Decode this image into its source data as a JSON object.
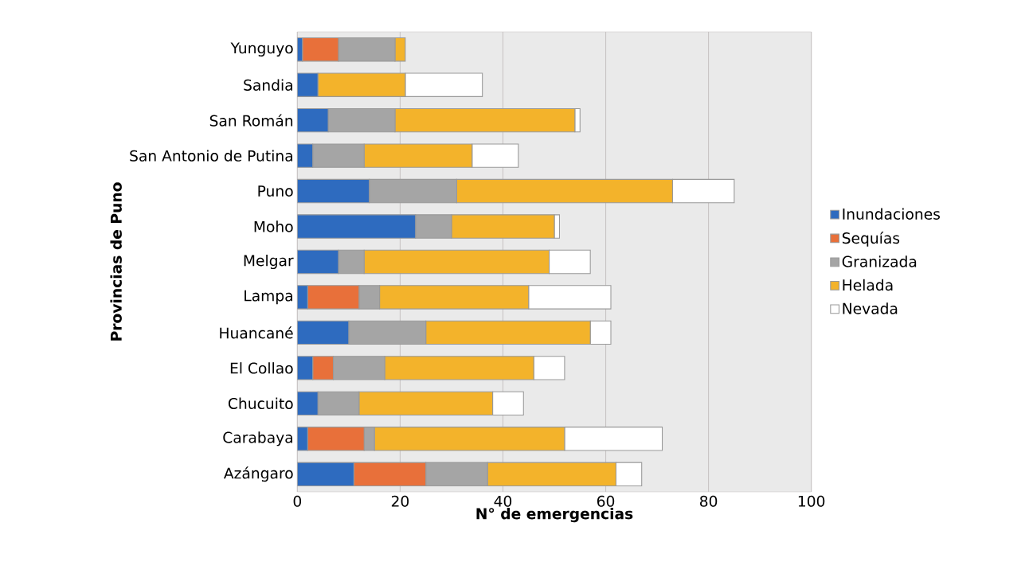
{
  "chart_data": {
    "type": "bar",
    "orientation": "horizontal",
    "stacked": true,
    "xlabel": "N° de emergencias",
    "ylabel": "Provincias de Puno",
    "categories": [
      "Yunguyo",
      "Sandia",
      "San Román",
      "San Antonio de Putina",
      "Puno",
      "Moho",
      "Melgar",
      "Lampa",
      "Huancané",
      "El Collao",
      "Chucuito",
      "Carabaya",
      "Azángaro"
    ],
    "series": [
      {
        "name": "Inundaciones",
        "color": "#2e6bbf",
        "values": [
          1,
          4,
          6,
          3,
          14,
          23,
          8,
          2,
          10,
          3,
          4,
          2,
          11
        ]
      },
      {
        "name": "Sequías",
        "color": "#e8703a",
        "values": [
          7,
          0,
          0,
          0,
          0,
          0,
          0,
          10,
          0,
          4,
          0,
          11,
          14
        ]
      },
      {
        "name": "Granizada",
        "color": "#a5a5a5",
        "values": [
          11,
          0,
          13,
          10,
          17,
          7,
          5,
          4,
          15,
          10,
          8,
          2,
          12
        ]
      },
      {
        "name": "Helada",
        "color": "#f3b32b",
        "values": [
          2,
          17,
          35,
          21,
          42,
          20,
          36,
          29,
          32,
          29,
          26,
          37,
          25
        ]
      },
      {
        "name": "Nevada",
        "color": "#ffffff",
        "values": [
          0,
          15,
          1,
          9,
          12,
          1,
          8,
          16,
          4,
          6,
          6,
          19,
          5
        ]
      }
    ],
    "xlim": [
      0,
      100
    ],
    "xticks": [
      0,
      20,
      40,
      60,
      80,
      100
    ],
    "grid": "x",
    "legend": "right"
  }
}
